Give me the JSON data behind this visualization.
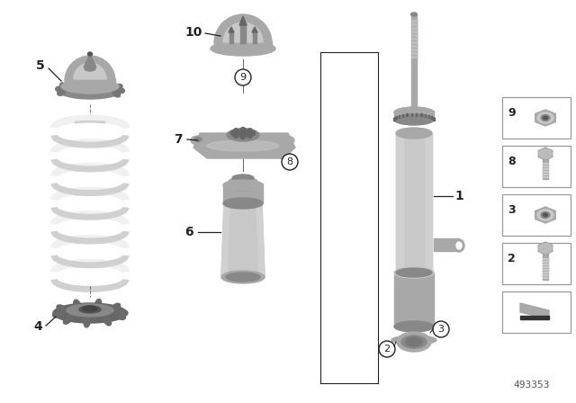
{
  "background_color": "#ffffff",
  "diagram_number": "493353",
  "line_color": "#222222",
  "gray_light": "#c8c8c8",
  "gray_mid": "#a8a8a8",
  "gray_dark": "#888888",
  "gray_darker": "#666666",
  "gray_spring": "#f0f0f0",
  "gray_spring_shadow": "#d0d0d0"
}
